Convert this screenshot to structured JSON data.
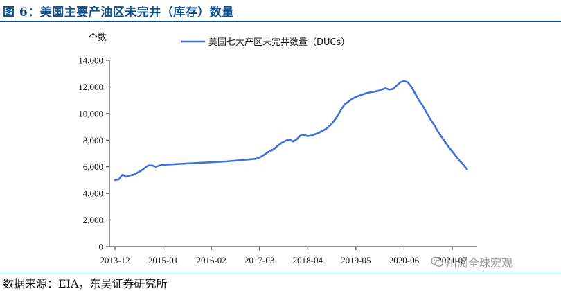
{
  "figure": {
    "title": "图 6：美国主要产油区未完井（库存）数量",
    "source": "数据来源：EIA，东吴证券研究所",
    "watermark": "川阅全球宏观",
    "watermark_icon": "wechat-icon"
  },
  "chart_data": {
    "type": "line",
    "title": "",
    "ylabel": "个数",
    "xlabel": "",
    "ylim": [
      0,
      14000
    ],
    "yticks": [
      0,
      2000,
      4000,
      6000,
      8000,
      10000,
      12000,
      14000
    ],
    "ytick_labels": [
      "0",
      "2,000",
      "4,000",
      "6,000",
      "8,000",
      "10,000",
      "12,000",
      "14,000"
    ],
    "xlim": [
      "2013-12",
      "2021-07"
    ],
    "xticks": [
      "2013-12",
      "2015-01",
      "2016-02",
      "2017-03",
      "2018-04",
      "2019-05",
      "2020-06",
      "2021-07"
    ],
    "grid": false,
    "legend_position": "top",
    "line_color": "#3f6fd9",
    "series": [
      {
        "name": "美国七大产区未完井数量（DUCs）",
        "points": [
          [
            "2013-12",
            5000
          ],
          [
            "2014-01",
            5050
          ],
          [
            "2014-02",
            5400
          ],
          [
            "2014-03",
            5250
          ],
          [
            "2014-04",
            5350
          ],
          [
            "2014-05",
            5400
          ],
          [
            "2014-06",
            5550
          ],
          [
            "2014-07",
            5700
          ],
          [
            "2014-08",
            5900
          ],
          [
            "2014-09",
            6100
          ],
          [
            "2014-10",
            6100
          ],
          [
            "2014-11",
            6000
          ],
          [
            "2014-12",
            6100
          ],
          [
            "2015-01",
            6150
          ],
          [
            "2016-06",
            6400
          ],
          [
            "2017-02",
            6600
          ],
          [
            "2017-03",
            6700
          ],
          [
            "2017-04",
            6850
          ],
          [
            "2017-05",
            7050
          ],
          [
            "2017-06",
            7200
          ],
          [
            "2017-07",
            7350
          ],
          [
            "2017-08",
            7600
          ],
          [
            "2017-09",
            7800
          ],
          [
            "2017-10",
            7950
          ],
          [
            "2017-11",
            8050
          ],
          [
            "2017-12",
            7900
          ],
          [
            "2018-01",
            8050
          ],
          [
            "2018-02",
            8350
          ],
          [
            "2018-03",
            8400
          ],
          [
            "2018-04",
            8300
          ],
          [
            "2018-05",
            8350
          ],
          [
            "2018-06",
            8450
          ],
          [
            "2018-07",
            8550
          ],
          [
            "2018-08",
            8700
          ],
          [
            "2018-09",
            8850
          ],
          [
            "2018-10",
            9100
          ],
          [
            "2018-11",
            9400
          ],
          [
            "2018-12",
            9800
          ],
          [
            "2019-01",
            10300
          ],
          [
            "2019-02",
            10700
          ],
          [
            "2019-03",
            10900
          ],
          [
            "2019-04",
            11100
          ],
          [
            "2019-05",
            11250
          ],
          [
            "2019-06",
            11350
          ],
          [
            "2019-07",
            11450
          ],
          [
            "2019-08",
            11550
          ],
          [
            "2019-09",
            11600
          ],
          [
            "2019-10",
            11650
          ],
          [
            "2019-11",
            11700
          ],
          [
            "2019-12",
            11800
          ],
          [
            "2020-01",
            11900
          ],
          [
            "2020-02",
            11800
          ],
          [
            "2020-03",
            11850
          ],
          [
            "2020-04",
            12100
          ],
          [
            "2020-05",
            12350
          ],
          [
            "2020-06",
            12450
          ],
          [
            "2020-07",
            12350
          ],
          [
            "2020-08",
            12000
          ],
          [
            "2020-09",
            11500
          ],
          [
            "2020-10",
            11000
          ],
          [
            "2020-11",
            10600
          ],
          [
            "2020-12",
            10100
          ],
          [
            "2021-01",
            9600
          ],
          [
            "2021-02",
            9200
          ],
          [
            "2021-03",
            8700
          ],
          [
            "2021-04",
            8300
          ],
          [
            "2021-05",
            7900
          ],
          [
            "2021-06",
            7500
          ],
          [
            "2021-07",
            7150
          ],
          [
            "2021-08",
            6800
          ],
          [
            "2021-09",
            6450
          ],
          [
            "2021-10",
            6150
          ],
          [
            "2021-11",
            5800
          ]
        ]
      }
    ]
  }
}
